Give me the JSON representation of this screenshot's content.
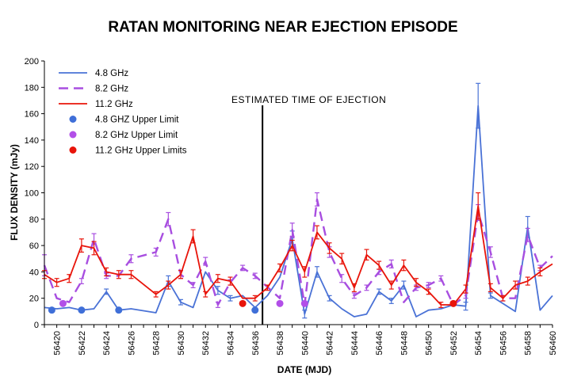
{
  "chart_data": {
    "type": "line",
    "title": "RATAN MONITORING NEAR EJECTION EPISODE",
    "xlabel": "DATE (MJD)",
    "ylabel": "FLUX DENSITY (mJy)",
    "xlim": [
      56419,
      56460
    ],
    "ylim": [
      0,
      200
    ],
    "xticks": [
      56420,
      56422,
      56424,
      56426,
      56428,
      56430,
      56432,
      56434,
      56436,
      56438,
      56440,
      56442,
      56444,
      56446,
      56448,
      56450,
      56452,
      56454,
      56456,
      56458,
      56460
    ],
    "yticks": [
      0,
      20,
      40,
      60,
      80,
      100,
      120,
      140,
      160,
      180,
      200
    ],
    "annotation": {
      "text": "ESTIMATED TIME OF EJECTION",
      "x": 56436.6
    },
    "series": [
      {
        "name": "4.8 GHz",
        "color": "#4a72d6",
        "dash": false,
        "x": [
          56419,
          56420,
          56421,
          56422,
          56423,
          56424,
          56425,
          56426,
          56428,
          56429,
          56430,
          56431,
          56432,
          56433,
          56434,
          56435,
          56436,
          56437,
          56438,
          56439,
          56440,
          56441,
          56442,
          56443,
          56444,
          56445,
          56446,
          56447,
          56448,
          56449,
          56450,
          56451,
          56452,
          56453,
          56454,
          56455,
          56456,
          56457,
          56458,
          56459,
          56460
        ],
        "y": [
          13,
          12,
          13,
          11,
          12,
          25,
          11,
          12,
          9,
          33,
          17,
          13,
          40,
          26,
          20,
          22,
          13,
          22,
          36,
          65,
          8,
          40,
          20,
          12,
          6,
          8,
          25,
          18,
          30,
          6,
          11,
          12,
          15,
          14,
          166,
          22,
          16,
          10,
          74,
          11,
          22
        ],
        "err": [
          0,
          0,
          0,
          0,
          0,
          2,
          0,
          0,
          0,
          4,
          2,
          0,
          0,
          3,
          2,
          0,
          0,
          0,
          0,
          6,
          3,
          4,
          2,
          0,
          0,
          0,
          2,
          2,
          3,
          0,
          0,
          0,
          0,
          3,
          17,
          2,
          0,
          0,
          8,
          0,
          0
        ]
      },
      {
        "name": "8.2 GHz",
        "color": "#a84ee0",
        "dash": true,
        "x": [
          56419,
          56420,
          56421,
          56422,
          56423,
          56424,
          56425,
          56426,
          56428,
          56429,
          56430,
          56431,
          56432,
          56433,
          56434,
          56435,
          56436,
          56438,
          56439,
          56440,
          56441,
          56442,
          56443,
          56444,
          56445,
          56446,
          56447,
          56448,
          56449,
          56450,
          56451,
          56452,
          56453,
          56454,
          56455,
          56456,
          56457,
          56458,
          56459,
          56460
        ],
        "y": [
          45,
          20,
          17,
          33,
          65,
          37,
          37,
          50,
          55,
          80,
          38,
          30,
          48,
          15,
          32,
          43,
          37,
          20,
          72,
          15,
          95,
          55,
          35,
          22,
          28,
          40,
          46,
          17,
          28,
          30,
          35,
          15,
          22,
          85,
          55,
          20,
          20,
          68,
          43,
          52
        ],
        "err": [
          8,
          0,
          0,
          2,
          4,
          2,
          0,
          3,
          3,
          5,
          3,
          2,
          3,
          2,
          2,
          2,
          2,
          0,
          5,
          0,
          5,
          4,
          3,
          2,
          2,
          2,
          3,
          0,
          2,
          2,
          2,
          0,
          2,
          6,
          4,
          2,
          0,
          5,
          2,
          0
        ]
      },
      {
        "name": "11.2 GHz",
        "color": "#e8140a",
        "dash": false,
        "x": [
          56419,
          56420,
          56421,
          56422,
          56423,
          56424,
          56425,
          56426,
          56428,
          56429,
          56430,
          56431,
          56432,
          56433,
          56434,
          56435,
          56436,
          56437,
          56438,
          56439,
          56440,
          56441,
          56442,
          56443,
          56444,
          56445,
          56446,
          56447,
          56448,
          56449,
          56450,
          56451,
          56452,
          56453,
          56454,
          56455,
          56456,
          56457,
          56458,
          56459,
          56460
        ],
        "y": [
          38,
          32,
          35,
          60,
          58,
          40,
          38,
          38,
          23,
          30,
          38,
          67,
          23,
          35,
          33,
          20,
          20,
          28,
          43,
          60,
          40,
          70,
          58,
          50,
          28,
          53,
          45,
          30,
          45,
          32,
          25,
          15,
          15,
          27,
          90,
          28,
          20,
          30,
          33,
          40,
          46
        ],
        "err": [
          3,
          3,
          3,
          5,
          5,
          3,
          3,
          3,
          2,
          3,
          3,
          5,
          2,
          3,
          3,
          0,
          2,
          2,
          3,
          4,
          4,
          5,
          4,
          4,
          3,
          4,
          3,
          3,
          4,
          3,
          2,
          2,
          0,
          3,
          10,
          3,
          2,
          3,
          3,
          3,
          0
        ]
      }
    ],
    "upper_limits": [
      {
        "name": "4.8 GHZ Upper Limit",
        "color": "#3f6fd8",
        "points": [
          [
            56419.6,
            11
          ],
          [
            56422,
            11
          ],
          [
            56425,
            11
          ],
          [
            56436,
            11
          ]
        ]
      },
      {
        "name": "8.2 GHz Upper Limit",
        "color": "#b24fe8",
        "points": [
          [
            56420.5,
            16
          ],
          [
            56438,
            16
          ],
          [
            56440,
            16
          ]
        ]
      },
      {
        "name": "11.2 GHz Upper Limits",
        "color": "#e8140a",
        "points": [
          [
            56435,
            16
          ],
          [
            56452,
            16
          ]
        ]
      }
    ]
  }
}
